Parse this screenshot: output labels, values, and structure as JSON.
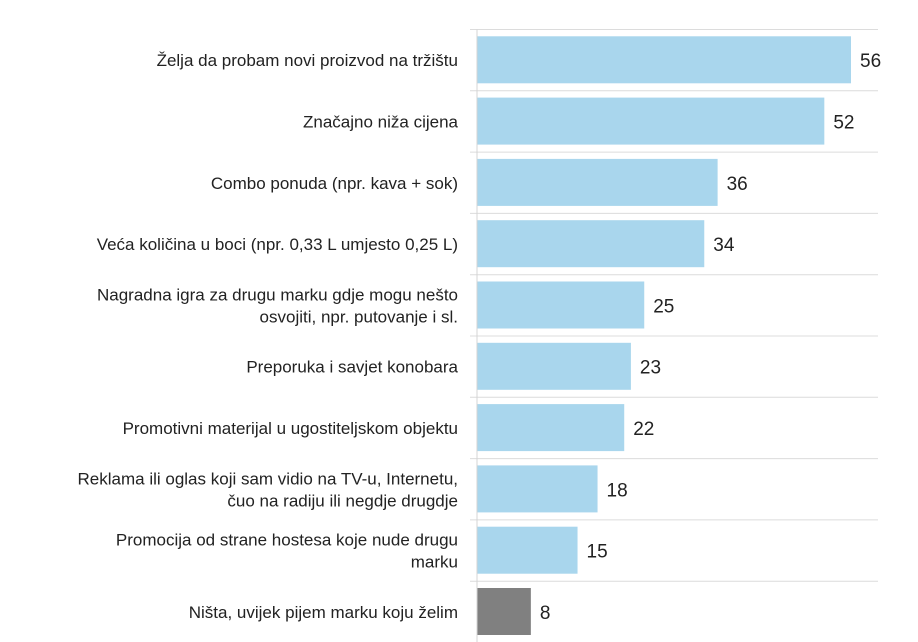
{
  "chart_data": {
    "type": "bar",
    "orientation": "horizontal",
    "title": "",
    "xlabel": "",
    "ylabel": "",
    "xlim": [
      0,
      56
    ],
    "grid": "horizontal row separators",
    "categories": [
      [
        "Želja da probam novi proizvod na tržištu"
      ],
      [
        "Značajno niža cijena"
      ],
      [
        "Combo ponuda (npr. kava + sok)"
      ],
      [
        "Veća količina u boci (npr. 0,33 L umjesto 0,25 L)"
      ],
      [
        "Nagradna igra za drugu marku gdje mogu nešto",
        "osvojiti, npr. putovanje i sl."
      ],
      [
        "Preporuka i savjet konobara"
      ],
      [
        "Promotivni materijal u ugostiteljskom objektu"
      ],
      [
        "Reklama ili oglas koji sam vidio na TV-u, Internetu,",
        "čuo na radiju ili negdje drugdje"
      ],
      [
        "Promocija od strane hostesa koje nude drugu",
        "marku"
      ],
      [
        "Ništa, uvijek pijem marku koju želim"
      ]
    ],
    "values": [
      56,
      52,
      36,
      34,
      25,
      23,
      22,
      18,
      15,
      8
    ],
    "colors": [
      "#a9d6ed",
      "#a9d6ed",
      "#a9d6ed",
      "#a9d6ed",
      "#a9d6ed",
      "#a9d6ed",
      "#a9d6ed",
      "#a9d6ed",
      "#a9d6ed",
      "#808080"
    ]
  }
}
